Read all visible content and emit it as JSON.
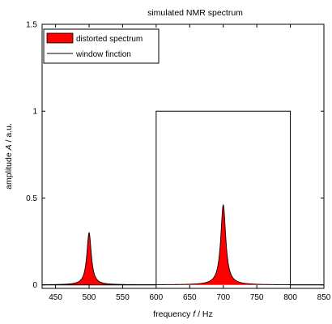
{
  "chart_data": {
    "type": "area",
    "title": "simulated NMR spectrum",
    "xlabel_prefix": "frequency ",
    "xlabel_var": "f",
    "xlabel_unit": " / Hz",
    "ylabel_prefix": "amplitude ",
    "ylabel_var": "A",
    "ylabel_unit": " / a.u.",
    "xlim": [
      430,
      850
    ],
    "ylim": [
      -0.02,
      1.5
    ],
    "xticks": [
      450,
      500,
      550,
      600,
      650,
      700,
      750,
      800,
      850
    ],
    "yticks": [
      0,
      0.5,
      1,
      1.5
    ],
    "ytick_labels": [
      "0",
      "0.5",
      "1",
      "1.5"
    ],
    "grid": false,
    "legend_position": "top-left",
    "series": [
      {
        "name": "distorted spectrum",
        "kind": "lorentzian-peaks",
        "fill_color": "#ff0000",
        "line_color": "#000000",
        "peaks": [
          {
            "center": 500,
            "height": 0.3,
            "half_width": 4
          },
          {
            "center": 700,
            "height": 0.46,
            "half_width": 4.5
          }
        ]
      },
      {
        "name": "window finction",
        "kind": "rectangular-window",
        "line_color": "#000000",
        "x": [
          430,
          600,
          600,
          800,
          800,
          850
        ],
        "y": [
          0,
          0,
          1,
          1,
          0,
          0
        ]
      }
    ]
  }
}
